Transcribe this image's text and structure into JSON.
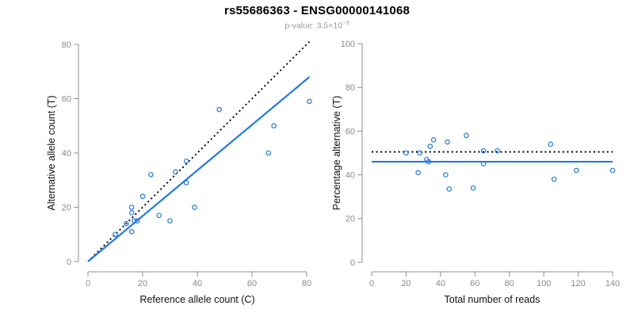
{
  "header": {
    "title": "rs55686363 - ENSG00000141068",
    "pvalue_prefix": "p-value: 3.5×10",
    "pvalue_exponent": "−3"
  },
  "colors": {
    "point_blue": "#2479df",
    "fit_blue": "#2479df",
    "dotted_black": "#000000",
    "axis_gray": "#909090",
    "tick_text_gray": "#8a8a8a",
    "label_black": "#111111",
    "subtitle_gray": "#9b9b9b"
  },
  "chart_data": [
    {
      "type": "scatter",
      "panel": "left",
      "xlabel": "Reference allele count (C)",
      "ylabel": "Alternative allele count (T)",
      "xlim": [
        0,
        80
      ],
      "ylim": [
        0,
        80
      ],
      "xticks": [
        0,
        20,
        40,
        60,
        80
      ],
      "yticks": [
        0,
        20,
        40,
        60,
        80
      ],
      "grid": false,
      "points": [
        [
          10,
          10
        ],
        [
          14,
          14
        ],
        [
          16,
          11
        ],
        [
          16,
          18
        ],
        [
          16,
          20
        ],
        [
          17,
          15
        ],
        [
          18,
          15
        ],
        [
          20,
          24
        ],
        [
          23,
          32
        ],
        [
          26,
          17
        ],
        [
          30,
          15
        ],
        [
          32,
          33
        ],
        [
          36,
          29
        ],
        [
          36,
          37
        ],
        [
          39,
          20
        ],
        [
          48,
          56
        ],
        [
          66,
          40
        ],
        [
          68,
          50
        ],
        [
          81,
          59
        ]
      ],
      "lines": [
        {
          "name": "identity-line",
          "style": "dotted",
          "color": "#000000",
          "x": [
            0,
            81
          ],
          "y": [
            0,
            81
          ]
        },
        {
          "name": "fit-line",
          "style": "solid",
          "color": "#2479df",
          "x": [
            0,
            81
          ],
          "y": [
            0,
            68
          ]
        }
      ]
    },
    {
      "type": "scatter",
      "panel": "right",
      "xlabel": "Total number of reads",
      "ylabel": "Percentage alternative (T)",
      "xlim": [
        0,
        140
      ],
      "ylim": [
        0,
        100
      ],
      "xticks": [
        0,
        20,
        40,
        60,
        80,
        100,
        120,
        140
      ],
      "yticks": [
        0,
        20,
        40,
        60,
        80,
        100
      ],
      "grid": false,
      "points": [
        [
          20,
          50
        ],
        [
          27,
          41
        ],
        [
          28,
          50
        ],
        [
          32,
          47
        ],
        [
          33,
          46
        ],
        [
          34,
          53
        ],
        [
          36,
          56
        ],
        [
          43,
          40
        ],
        [
          44,
          55
        ],
        [
          45,
          33.5
        ],
        [
          55,
          58
        ],
        [
          59,
          34
        ],
        [
          65,
          45
        ],
        [
          65,
          51
        ],
        [
          73,
          51
        ],
        [
          104,
          54
        ],
        [
          106,
          38
        ],
        [
          119,
          42
        ],
        [
          140,
          42
        ]
      ],
      "lines": [
        {
          "name": "expected-line",
          "style": "dotted",
          "color": "#000000",
          "x": [
            0,
            140
          ],
          "y": [
            50.5,
            50.5
          ]
        },
        {
          "name": "fit-line",
          "style": "solid",
          "color": "#2479df",
          "x": [
            0,
            140
          ],
          "y": [
            46,
            46
          ]
        }
      ]
    }
  ]
}
